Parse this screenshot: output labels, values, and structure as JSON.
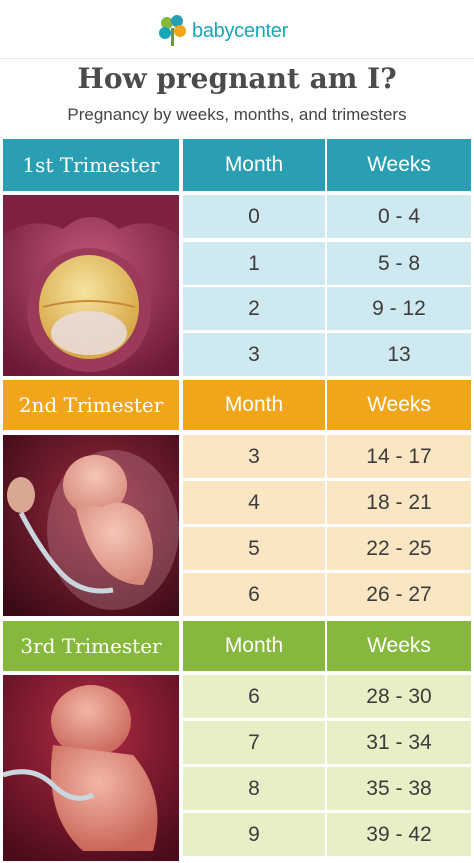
{
  "brand": {
    "name": "babycenter"
  },
  "title": "How pregnant am I?",
  "subtitle": "Pregnancy by weeks, months, and trimesters",
  "colors": {
    "trimester1_header": "#2a9fb4",
    "trimester1_row": "#cfe9f1",
    "trimester2_header": "#f1a51a",
    "trimester2_row": "#fbe6c3",
    "trimester3_header": "#86b83d",
    "trimester3_row": "#e6efc6"
  },
  "trimesters": [
    {
      "label": "1st Trimester",
      "month_header": "Month",
      "weeks_header": "Weeks",
      "rows": [
        {
          "month": "0",
          "weeks": "0 - 4"
        },
        {
          "month": "1",
          "weeks": "5 - 8"
        },
        {
          "month": "2",
          "weeks": "9 - 12"
        },
        {
          "month": "3",
          "weeks": "13"
        }
      ]
    },
    {
      "label": "2nd Trimester",
      "month_header": "Month",
      "weeks_header": "Weeks",
      "rows": [
        {
          "month": "3",
          "weeks": "14 - 17"
        },
        {
          "month": "4",
          "weeks": "18 - 21"
        },
        {
          "month": "5",
          "weeks": "22 - 25"
        },
        {
          "month": "6",
          "weeks": "26 - 27"
        }
      ]
    },
    {
      "label": "3rd Trimester",
      "month_header": "Month",
      "weeks_header": "Weeks",
      "rows": [
        {
          "month": "6",
          "weeks": "28 - 30"
        },
        {
          "month": "7",
          "weeks": "31 - 34"
        },
        {
          "month": "8",
          "weeks": "35 - 38"
        },
        {
          "month": "9",
          "weeks": "39 - 42"
        }
      ]
    }
  ]
}
